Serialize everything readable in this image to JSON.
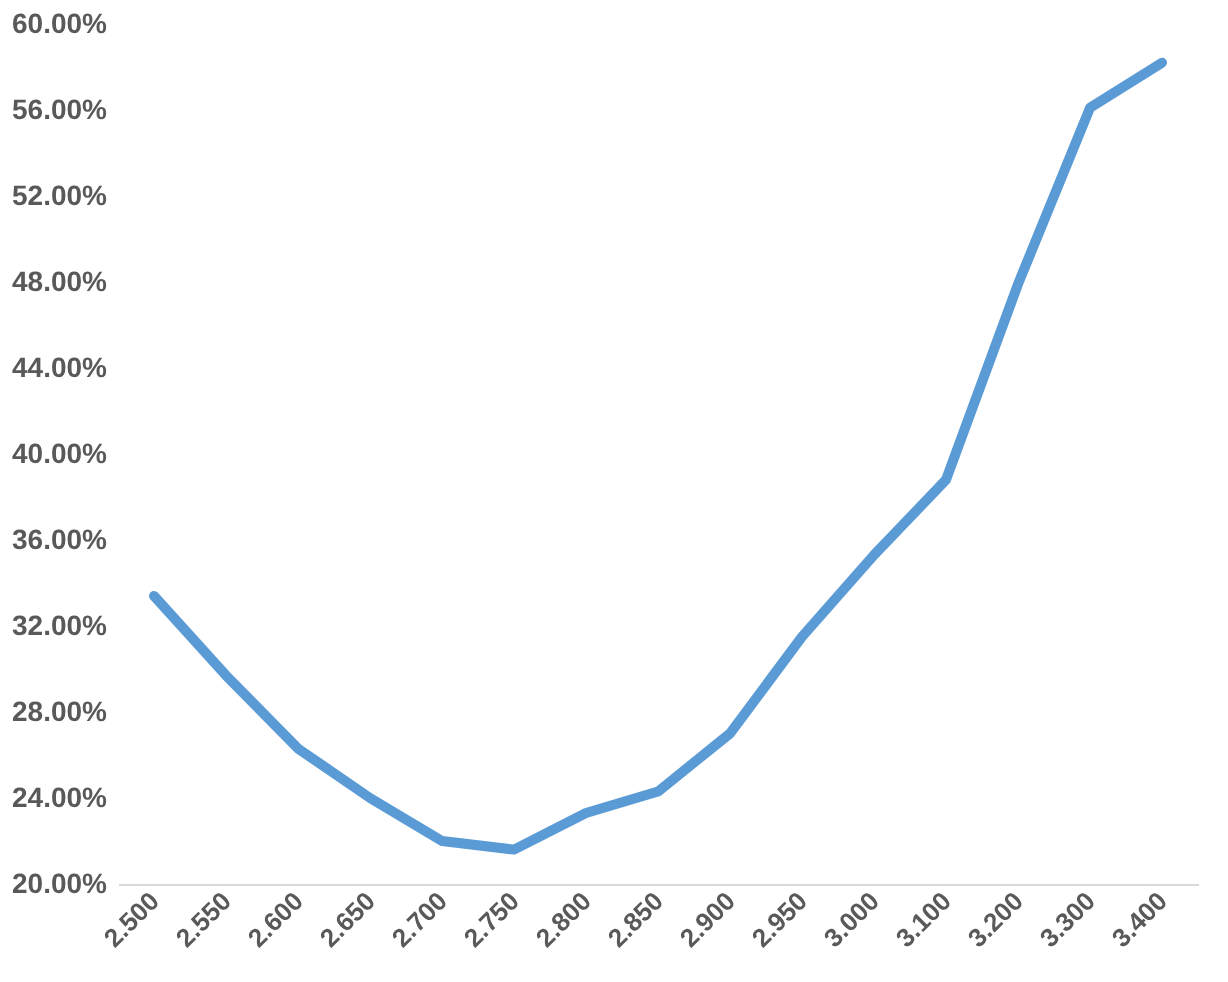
{
  "chart_data": {
    "type": "line",
    "categories": [
      "2.500",
      "2.550",
      "2.600",
      "2.650",
      "2.700",
      "2.750",
      "2.800",
      "2.850",
      "2.900",
      "2.950",
      "3.000",
      "3.100",
      "3.200",
      "3.300",
      "3.400"
    ],
    "series": [
      {
        "color": "#5b9bd5",
        "values": [
          33.4,
          29.7,
          26.3,
          24.0,
          22.0,
          21.6,
          23.3,
          24.3,
          27.0,
          31.5,
          35.3,
          38.8,
          47.9,
          56.1,
          58.2
        ]
      }
    ],
    "ylim": [
      20,
      60
    ],
    "yticks": [
      {
        "value": 20,
        "label": "20.00%"
      },
      {
        "value": 24,
        "label": "24.00%"
      },
      {
        "value": 28,
        "label": "28.00%"
      },
      {
        "value": 32,
        "label": "32.00%"
      },
      {
        "value": 36,
        "label": "36.00%"
      },
      {
        "value": 40,
        "label": "40.00%"
      },
      {
        "value": 44,
        "label": "44.00%"
      },
      {
        "value": 48,
        "label": "48.00%"
      },
      {
        "value": 52,
        "label": "52.00%"
      },
      {
        "value": 56,
        "label": "56.00%"
      },
      {
        "value": 60,
        "label": "60.00%"
      }
    ],
    "grid": false,
    "marker": "none",
    "line_style": "solid"
  }
}
